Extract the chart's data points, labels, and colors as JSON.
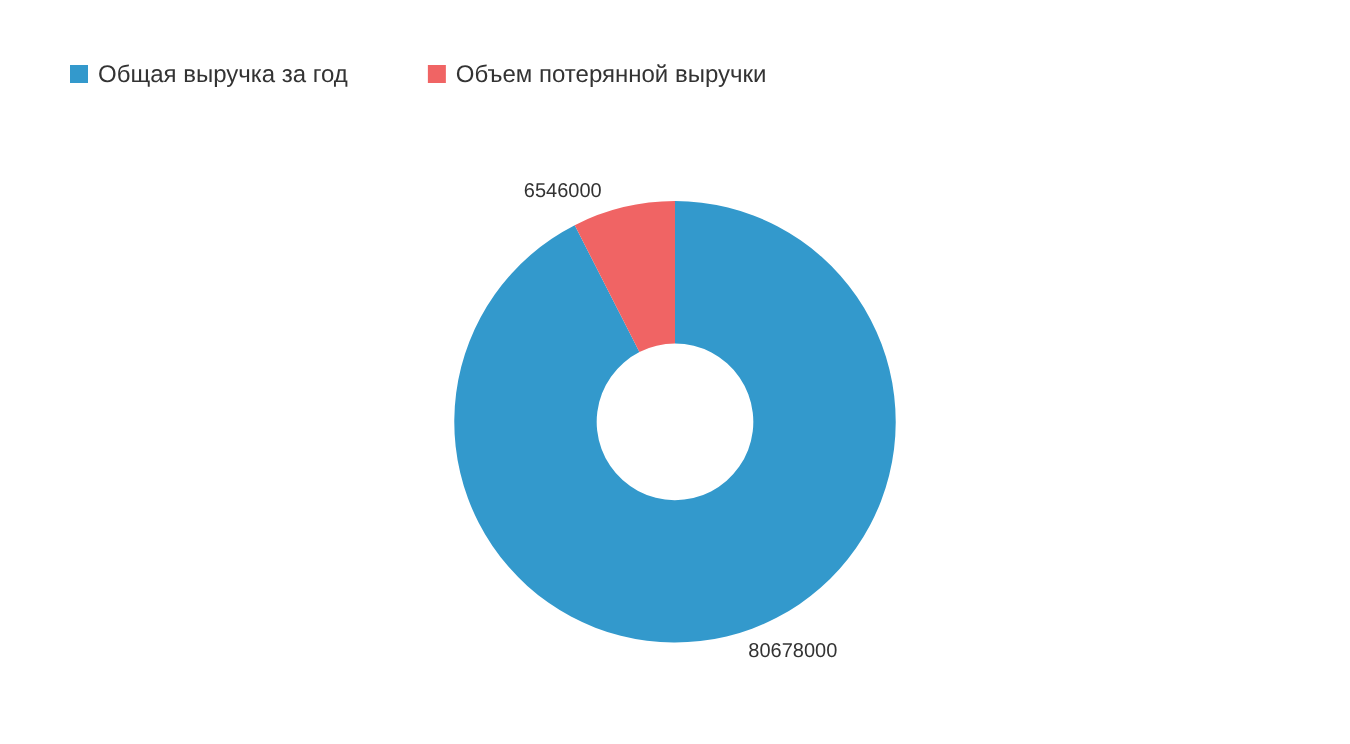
{
  "chart_data": {
    "type": "donut",
    "categories": [
      "Общая выручка за год",
      "Объем потерянной выручки"
    ],
    "values": [
      80678000,
      6546000
    ],
    "colors": [
      "#3399cc",
      "#f06464"
    ],
    "data_labels": true,
    "legend": "top left"
  }
}
